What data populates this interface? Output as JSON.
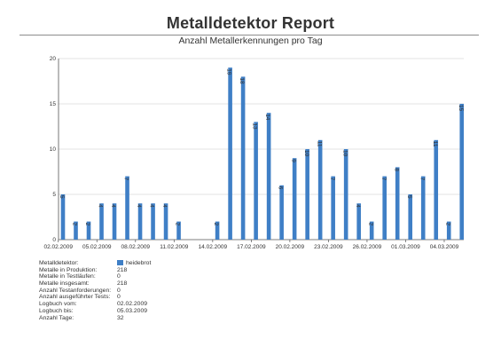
{
  "report": {
    "title": "Metalldetektor Report",
    "subtitle": "Anzahl Metallerkennungen pro Tag"
  },
  "chart_data": {
    "type": "bar",
    "x": [
      "02.02.2009",
      "03.02.2009",
      "04.02.2009",
      "05.02.2009",
      "06.02.2009",
      "07.02.2009",
      "08.02.2009",
      "09.02.2009",
      "10.02.2009",
      "11.02.2009",
      "12.02.2009",
      "13.02.2009",
      "14.02.2009",
      "15.02.2009",
      "16.02.2009",
      "17.02.2009",
      "18.02.2009",
      "19.02.2009",
      "20.02.2009",
      "21.02.2009",
      "22.02.2009",
      "23.02.2009",
      "24.02.2009",
      "25.02.2009",
      "26.02.2009",
      "27.02.2009",
      "28.02.2009",
      "01.03.2009",
      "02.03.2009",
      "03.03.2009",
      "04.03.2009",
      "05.03.2009"
    ],
    "series": [
      {
        "name": "heidebrot",
        "values": [
          5,
          2,
          2,
          4,
          4,
          7,
          4,
          4,
          4,
          2,
          0,
          0,
          2,
          19,
          18,
          13,
          14,
          6,
          9,
          10,
          11,
          7,
          10,
          4,
          2,
          7,
          8,
          5,
          7,
          11,
          2,
          15
        ]
      }
    ],
    "x_tick_labels": [
      "02.02.2009",
      "05.02.2009",
      "08.02.2009",
      "11.02.2009",
      "14.02.2009",
      "17.02.2009",
      "20.02.2009",
      "23.02.2009",
      "26.02.2009",
      "01.03.2009",
      "04.03.2009"
    ],
    "y_ticks": [
      0,
      5,
      10,
      15,
      20
    ],
    "ylim": [
      0,
      20
    ],
    "title": "Metalldetektor Report",
    "subtitle": "Anzahl Metallerkennungen pro Tag",
    "xlabel": "",
    "ylabel": "",
    "grid": "horizontal",
    "legend": "bottom-left",
    "bar_color": "#3f7fc6",
    "grid_color": "#c8c8c8"
  },
  "info": {
    "rows": [
      {
        "label": "Metalldetektor:",
        "value": "heidebrot",
        "swatch": true
      },
      {
        "label": "Metalle in Produktion:",
        "value": "218"
      },
      {
        "label": "Metalle in Testläufen:",
        "value": "0"
      },
      {
        "label": "Metalle insgesamt:",
        "value": "218"
      },
      {
        "label": "Anzahl Testanforderungen:",
        "value": "0"
      },
      {
        "label": "Anzahl ausgeführter Tests:",
        "value": "0"
      },
      {
        "label": "Logbuch vom:",
        "value": "02.02.2009"
      },
      {
        "label": "Logbuch bis:",
        "value": "05.03.2009"
      },
      {
        "label": "Anzahl Tage:",
        "value": "32"
      }
    ]
  }
}
